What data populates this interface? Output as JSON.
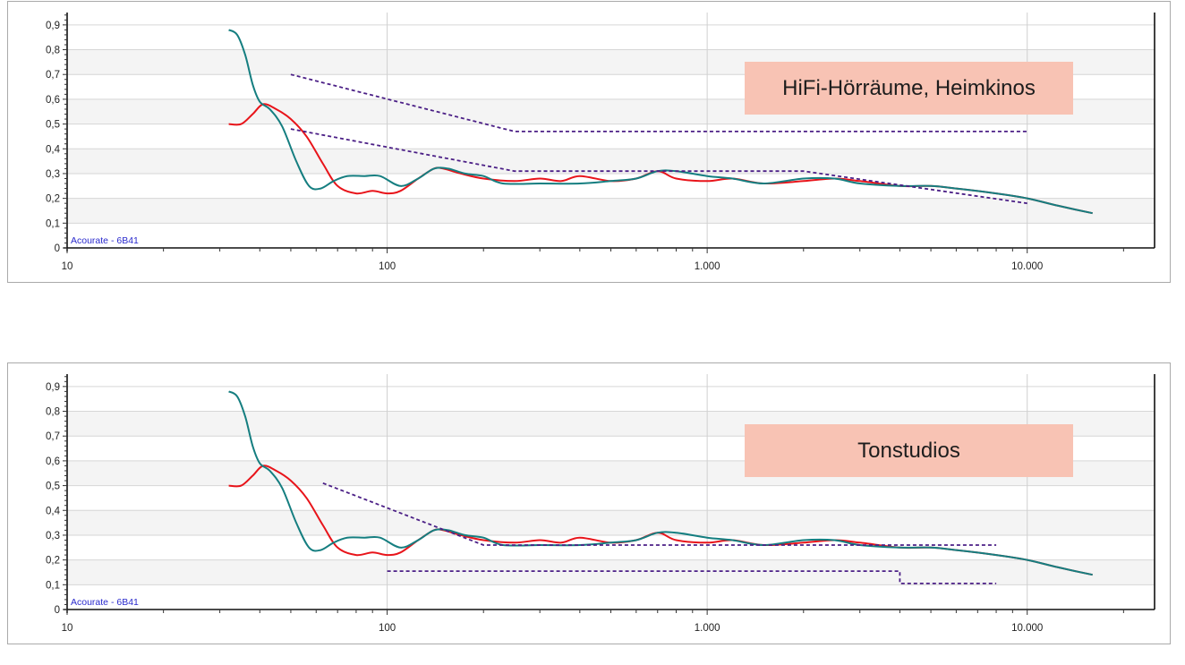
{
  "chart_data": [
    {
      "type": "line",
      "label": "HiFi-Hörräume, Heimkinos",
      "watermark": "Acourate - 6B41",
      "xscale": "log",
      "xlim": [
        10,
        25000
      ],
      "ylim": [
        0,
        0.95
      ],
      "grid": true,
      "x_ticks": [
        {
          "v": 10,
          "t": "10"
        },
        {
          "v": 100,
          "t": "100"
        },
        {
          "v": 1000,
          "t": "1.000"
        },
        {
          "v": 10000,
          "t": "10.000"
        }
      ],
      "y_ticks": [
        {
          "v": 0,
          "t": "0"
        },
        {
          "v": 0.1,
          "t": "0,1"
        },
        {
          "v": 0.2,
          "t": "0,2"
        },
        {
          "v": 0.3,
          "t": "0,3"
        },
        {
          "v": 0.4,
          "t": "0,4"
        },
        {
          "v": 0.5,
          "t": "0,5"
        },
        {
          "v": 0.6,
          "t": "0,6"
        },
        {
          "v": 0.7,
          "t": "0,7"
        },
        {
          "v": 0.8,
          "t": "0,8"
        },
        {
          "v": 0.9,
          "t": "0,9"
        }
      ],
      "series": [
        {
          "color": "#e8141a",
          "style": "solid",
          "x": [
            32,
            35,
            38,
            41,
            45,
            50,
            56,
            63,
            70,
            80,
            90,
            100,
            110,
            125,
            140,
            150,
            170,
            200,
            250,
            300,
            350,
            400,
            500,
            600,
            700,
            800,
            1000,
            1200,
            1500,
            2000,
            2500,
            3000,
            4000,
            5000,
            6000,
            8000,
            10000,
            12500,
            16000
          ],
          "y": [
            0.5,
            0.5,
            0.54,
            0.58,
            0.56,
            0.52,
            0.45,
            0.34,
            0.25,
            0.22,
            0.23,
            0.22,
            0.23,
            0.28,
            0.32,
            0.32,
            0.3,
            0.28,
            0.27,
            0.28,
            0.27,
            0.29,
            0.27,
            0.28,
            0.31,
            0.28,
            0.27,
            0.28,
            0.26,
            0.27,
            0.28,
            0.27,
            0.25,
            0.25,
            0.24,
            0.22,
            0.2,
            0.17,
            0.14
          ]
        },
        {
          "color": "#157e80",
          "style": "solid",
          "x": [
            32,
            34,
            36,
            38,
            40,
            43,
            47,
            52,
            57,
            62,
            68,
            75,
            85,
            95,
            110,
            125,
            140,
            155,
            175,
            200,
            230,
            300,
            400,
            500,
            600,
            700,
            800,
            1000,
            1200,
            1500,
            2000,
            2500,
            3000,
            4000,
            5000,
            6000,
            8000,
            10000,
            12500,
            16000
          ],
          "y": [
            0.88,
            0.86,
            0.78,
            0.66,
            0.59,
            0.56,
            0.49,
            0.35,
            0.25,
            0.24,
            0.27,
            0.29,
            0.29,
            0.29,
            0.25,
            0.28,
            0.32,
            0.32,
            0.3,
            0.29,
            0.26,
            0.26,
            0.26,
            0.27,
            0.28,
            0.31,
            0.31,
            0.29,
            0.28,
            0.26,
            0.28,
            0.28,
            0.26,
            0.25,
            0.25,
            0.24,
            0.22,
            0.2,
            0.17,
            0.14
          ]
        },
        {
          "color": "#4b1f86",
          "style": "dashed",
          "x": [
            50,
            250,
            10000
          ],
          "y": [
            0.7,
            0.47,
            0.47
          ]
        },
        {
          "color": "#4b1f86",
          "style": "dashed",
          "x": [
            50,
            250,
            2000,
            10000
          ],
          "y": [
            0.48,
            0.31,
            0.31,
            0.18
          ]
        }
      ]
    },
    {
      "type": "line",
      "label": "Tonstudios",
      "watermark": "Acourate - 6B41",
      "xscale": "log",
      "xlim": [
        10,
        25000
      ],
      "ylim": [
        0,
        0.95
      ],
      "grid": true,
      "x_ticks": [
        {
          "v": 10,
          "t": "10"
        },
        {
          "v": 100,
          "t": "100"
        },
        {
          "v": 1000,
          "t": "1.000"
        },
        {
          "v": 10000,
          "t": "10.000"
        }
      ],
      "y_ticks": [
        {
          "v": 0,
          "t": "0"
        },
        {
          "v": 0.1,
          "t": "0,1"
        },
        {
          "v": 0.2,
          "t": "0,2"
        },
        {
          "v": 0.3,
          "t": "0,3"
        },
        {
          "v": 0.4,
          "t": "0,4"
        },
        {
          "v": 0.5,
          "t": "0,5"
        },
        {
          "v": 0.6,
          "t": "0,6"
        },
        {
          "v": 0.7,
          "t": "0,7"
        },
        {
          "v": 0.8,
          "t": "0,8"
        },
        {
          "v": 0.9,
          "t": "0,9"
        }
      ],
      "series": [
        {
          "color": "#e8141a",
          "style": "solid",
          "x": [
            32,
            35,
            38,
            41,
            45,
            50,
            56,
            63,
            70,
            80,
            90,
            100,
            110,
            125,
            140,
            150,
            170,
            200,
            250,
            300,
            350,
            400,
            500,
            600,
            700,
            800,
            1000,
            1200,
            1500,
            2000,
            2500,
            3000,
            4000,
            5000,
            6000,
            8000,
            10000,
            12500,
            16000
          ],
          "y": [
            0.5,
            0.5,
            0.54,
            0.58,
            0.56,
            0.52,
            0.45,
            0.34,
            0.25,
            0.22,
            0.23,
            0.22,
            0.23,
            0.28,
            0.32,
            0.32,
            0.3,
            0.28,
            0.27,
            0.28,
            0.27,
            0.29,
            0.27,
            0.28,
            0.31,
            0.28,
            0.27,
            0.28,
            0.26,
            0.27,
            0.28,
            0.27,
            0.25,
            0.25,
            0.24,
            0.22,
            0.2,
            0.17,
            0.14
          ]
        },
        {
          "color": "#157e80",
          "style": "solid",
          "x": [
            32,
            34,
            36,
            38,
            40,
            43,
            47,
            52,
            57,
            62,
            68,
            75,
            85,
            95,
            110,
            125,
            140,
            155,
            175,
            200,
            230,
            300,
            400,
            500,
            600,
            700,
            800,
            1000,
            1200,
            1500,
            2000,
            2500,
            3000,
            4000,
            5000,
            6000,
            8000,
            10000,
            12500,
            16000
          ],
          "y": [
            0.88,
            0.86,
            0.78,
            0.66,
            0.59,
            0.56,
            0.49,
            0.35,
            0.25,
            0.24,
            0.27,
            0.29,
            0.29,
            0.29,
            0.25,
            0.28,
            0.32,
            0.32,
            0.3,
            0.29,
            0.26,
            0.26,
            0.26,
            0.27,
            0.28,
            0.31,
            0.31,
            0.29,
            0.28,
            0.26,
            0.28,
            0.28,
            0.26,
            0.25,
            0.25,
            0.24,
            0.22,
            0.2,
            0.17,
            0.14
          ]
        },
        {
          "color": "#4b1f86",
          "style": "dashed",
          "x": [
            63,
            200,
            8000
          ],
          "y": [
            0.51,
            0.26,
            0.26
          ]
        },
        {
          "color": "#4b1f86",
          "style": "dashed",
          "x": [
            100,
            4000,
            4000,
            8000
          ],
          "y": [
            0.155,
            0.155,
            0.105,
            0.105
          ]
        }
      ]
    }
  ]
}
